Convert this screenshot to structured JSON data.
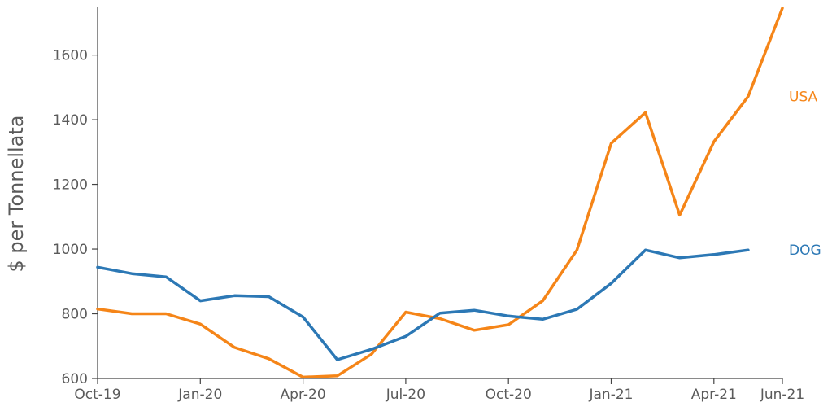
{
  "chart_data": {
    "type": "line",
    "ylabel": "$ per Tonnellata",
    "xlabel": "",
    "ylim": [
      600,
      1750
    ],
    "yticks": [
      600,
      800,
      1000,
      1200,
      1400,
      1600
    ],
    "x": [
      "2019-10",
      "2019-11",
      "2019-12",
      "2020-01",
      "2020-02",
      "2020-03",
      "2020-04",
      "2020-05",
      "2020-06",
      "2020-07",
      "2020-08",
      "2020-09",
      "2020-10",
      "2020-11",
      "2020-12",
      "2021-01",
      "2021-02",
      "2021-03",
      "2021-04",
      "2021-05",
      "2021-06"
    ],
    "xticks": [
      {
        "label": "Oct-19",
        "x": "2019-10"
      },
      {
        "label": "Jan-20",
        "x": "2020-01"
      },
      {
        "label": "Apr-20",
        "x": "2020-04"
      },
      {
        "label": "Jul-20",
        "x": "2020-07"
      },
      {
        "label": "Oct-20",
        "x": "2020-10"
      },
      {
        "label": "Jan-21",
        "x": "2021-01"
      },
      {
        "label": "Apr-21",
        "x": "2021-04"
      },
      {
        "label": "Jun-21",
        "x": "2021-06"
      }
    ],
    "series": [
      {
        "name": "USA",
        "color": "#f58518",
        "values": [
          815,
          800,
          800,
          768,
          696,
          661,
          604,
          608,
          675,
          805,
          785,
          749,
          766,
          840,
          997,
          1327,
          1422,
          1105,
          1332,
          1472,
          1745
        ]
      },
      {
        "name": "DOG",
        "color": "#2c78b5",
        "values": [
          944,
          924,
          914,
          840,
          856,
          853,
          790,
          658,
          690,
          730,
          802,
          811,
          793,
          783,
          814,
          894,
          997,
          973,
          983,
          997,
          null
        ]
      }
    ]
  }
}
